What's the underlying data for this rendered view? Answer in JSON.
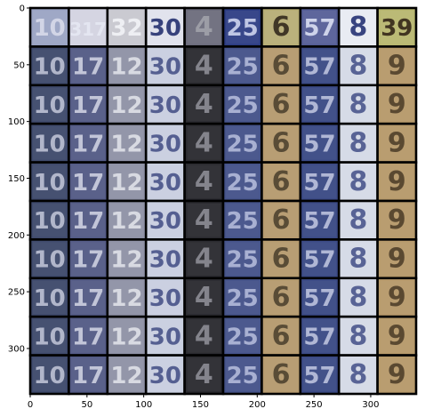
{
  "figure": {
    "x_ticks": [
      "0",
      "50",
      "100",
      "150",
      "200",
      "250",
      "300"
    ],
    "y_ticks": [
      "0",
      "50",
      "100",
      "150",
      "200",
      "250",
      "300"
    ]
  },
  "grid": {
    "rows": 10,
    "cols": 10,
    "column_digits": [
      "10",
      "17",
      "12",
      "30",
      "4",
      "25",
      "6",
      "57",
      "8",
      "9"
    ],
    "first_row_digits": [
      "10",
      "317",
      "32",
      "30",
      "4",
      "25",
      "6",
      "57",
      "8",
      "39"
    ],
    "column_backgrounds": [
      "#3f4a6c",
      "#545b86",
      "#8f92a6",
      "#c9cfe0",
      "#2b2b30",
      "#45538a",
      "#b69b6f",
      "#3b4a85",
      "#d5dae6",
      "#b79a6b"
    ],
    "column_ink": [
      "#d5d8e8",
      "#e5e7f2",
      "#f0f1f5",
      "#2e3a77",
      "#9fa0a8",
      "#c7cde9",
      "#3a3122",
      "#d5d9ef",
      "#2f3c7a",
      "#3b2e1d"
    ],
    "first_row_backgrounds": [
      "#9aa3c3",
      "#d3d3e1",
      "#c7c7cf",
      "#e0e2ec",
      "#6b6b7b",
      "#2c3c83",
      "#b6ad74",
      "#545d96",
      "#e8ebf3",
      "#b7b66e"
    ]
  }
}
